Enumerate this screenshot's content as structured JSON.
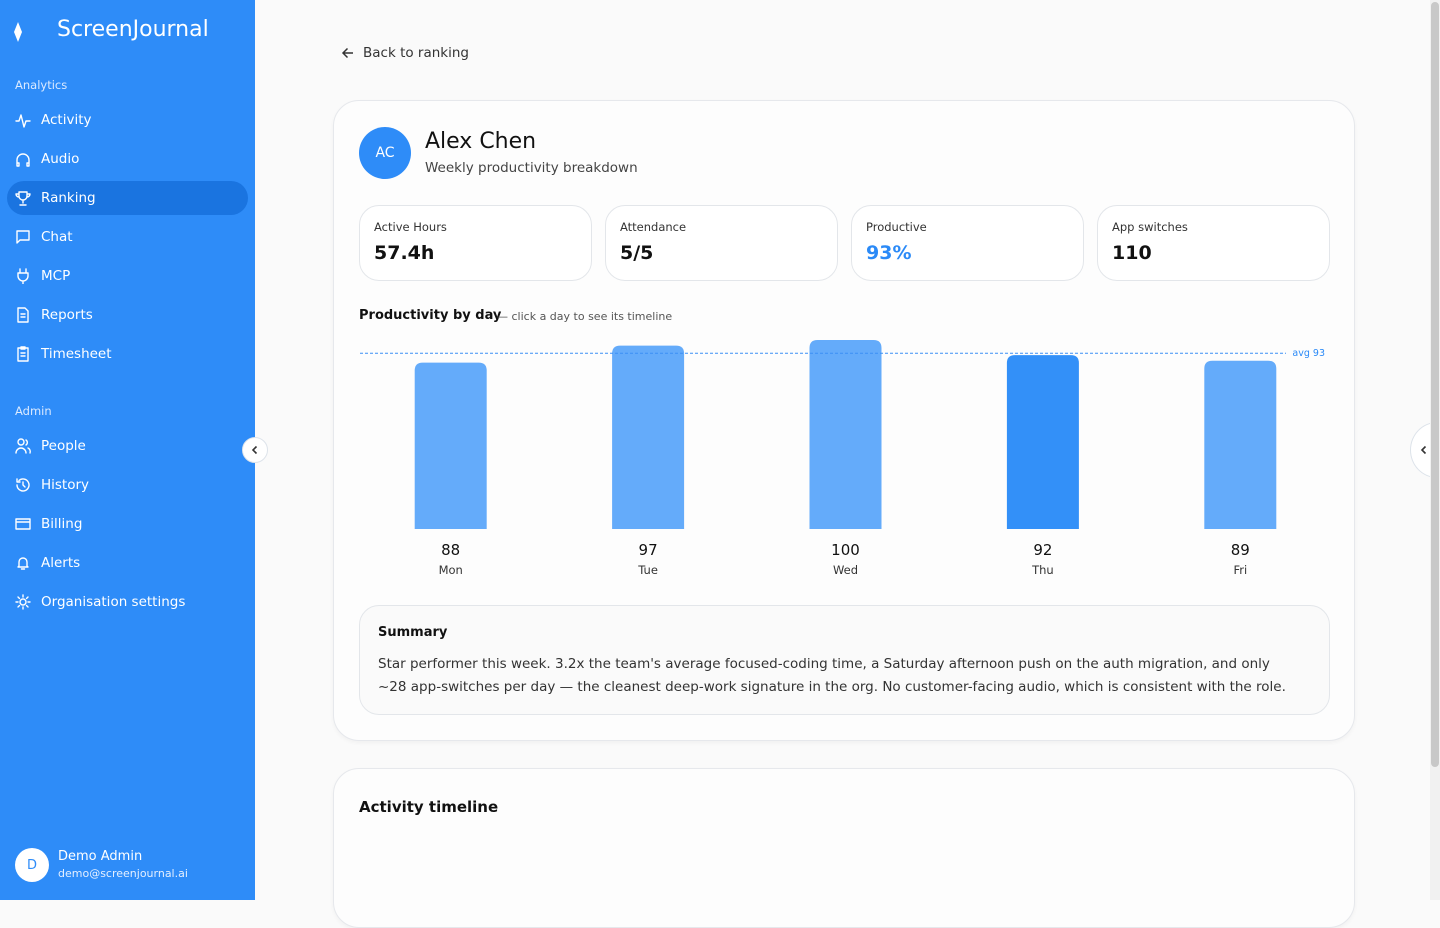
{
  "brand": "ScreenJournal",
  "sidebar": {
    "sections": [
      {
        "title": "Analytics",
        "items": [
          {
            "label": "Activity"
          },
          {
            "label": "Audio"
          },
          {
            "label": "Ranking",
            "active": true
          },
          {
            "label": "Chat"
          },
          {
            "label": "MCP"
          },
          {
            "label": "Reports"
          },
          {
            "label": "Timesheet"
          }
        ]
      },
      {
        "title": "Admin",
        "items": [
          {
            "label": "People"
          },
          {
            "label": "History"
          },
          {
            "label": "Billing"
          },
          {
            "label": "Alerts"
          },
          {
            "label": "Organisation settings"
          }
        ]
      }
    ],
    "user": {
      "initial": "D",
      "name": "Demo Admin",
      "email": "demo@screenjournal.ai"
    }
  },
  "back_link": "Back to ranking",
  "profile": {
    "initials": "AC",
    "name": "Alex Chen",
    "subtitle": "Weekly productivity breakdown"
  },
  "stats": [
    {
      "label": "Active Hours",
      "value": "57.4h"
    },
    {
      "label": "Attendance",
      "value": "5/5"
    },
    {
      "label": "Productive",
      "value": "93%",
      "color": "#2b8af7"
    },
    {
      "label": "App switches",
      "value": "110"
    }
  ],
  "chart_data": {
    "type": "bar",
    "title": "Productivity by day",
    "subtitle": "— click a day to see its timeline",
    "categories": [
      "Mon",
      "Tue",
      "Wed",
      "Thu",
      "Fri"
    ],
    "values": [
      88,
      97,
      100,
      92,
      89
    ],
    "colors": [
      "#64abfa",
      "#64abfa",
      "#64abfa",
      "#3390f8",
      "#64abfa"
    ],
    "ylim": [
      0,
      100
    ],
    "average": {
      "value": 93,
      "label": "avg 93"
    }
  },
  "summary": {
    "title": "Summary",
    "text": "Star performer this week. 3.2x the team's average focused-coding time, a Saturday afternoon push on the auth migration, and only ~28 app-switches per day — the cleanest deep-work signature in the org. No customer-facing audio, which is consistent with the role."
  },
  "timeline": {
    "title": "Activity timeline"
  }
}
